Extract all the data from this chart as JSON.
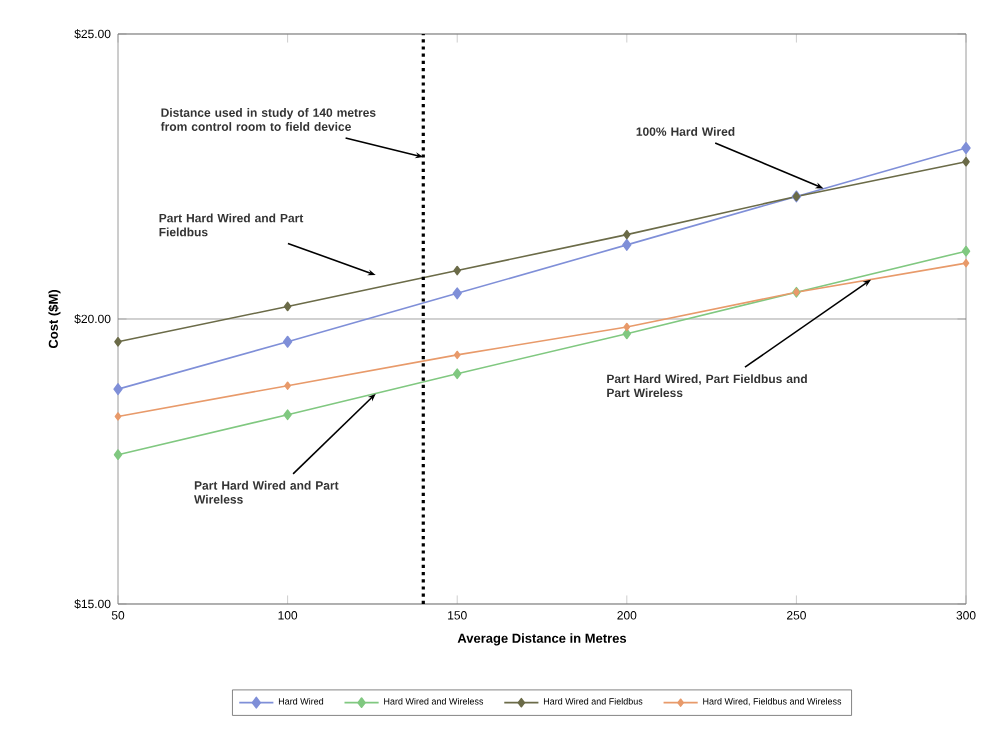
{
  "chart_data": {
    "type": "line",
    "xlabel": "Average Distance in Metres",
    "ylabel": "Cost ($M)",
    "x": [
      50,
      100,
      150,
      200,
      250,
      300
    ],
    "series": [
      {
        "name": "Hard Wired",
        "color": "#7f8fd8",
        "values": [
          18.77,
          19.6,
          20.45,
          21.3,
          22.15,
          23.0
        ]
      },
      {
        "name": "Hard Wired and Wireless",
        "color": "#80c880",
        "values": [
          17.62,
          18.32,
          19.04,
          19.74,
          20.47,
          21.19
        ]
      },
      {
        "name": "Hard Wired and Fieldbus",
        "color": "#6b6b48",
        "values": [
          19.6,
          20.22,
          20.85,
          21.48,
          22.15,
          22.76
        ]
      },
      {
        "name": "Hard Wired, Fieldbus and Wireless",
        "color": "#e89a6a",
        "values": [
          18.29,
          18.83,
          19.37,
          19.86,
          20.47,
          20.98
        ]
      }
    ],
    "xlim": [
      50,
      300
    ],
    "xticks": [
      50,
      100,
      150,
      200,
      250,
      300
    ],
    "ylim": [
      15,
      25
    ],
    "yticks": [
      {
        "value": 15,
        "label": "$15.00"
      },
      {
        "value": 20,
        "label": "$20.00"
      },
      {
        "value": 25,
        "label": "$25.00"
      }
    ],
    "grid": "y",
    "legend": "bottom",
    "marker": "diamond",
    "ref_lines": [
      {
        "axis": "x",
        "value": 140,
        "color": "#000000",
        "line_style": "dotted"
      }
    ],
    "annotations": [
      {
        "text": "Distance used in study of 140 metres from control room to field device",
        "x": 140,
        "y": 22.84
      },
      {
        "text": "100% Hard Wired",
        "x": 258,
        "y": 22.29
      },
      {
        "text": "Part Hard Wired and Part Fieldbus",
        "x": 126,
        "y": 20.77
      },
      {
        "text": "Part Hard Wired and Part Wireless",
        "x": 126,
        "y": 18.69
      },
      {
        "text": "Part Hard Wired, Part Fieldbus and Part Wireless",
        "x": 272,
        "y": 20.69
      }
    ]
  }
}
